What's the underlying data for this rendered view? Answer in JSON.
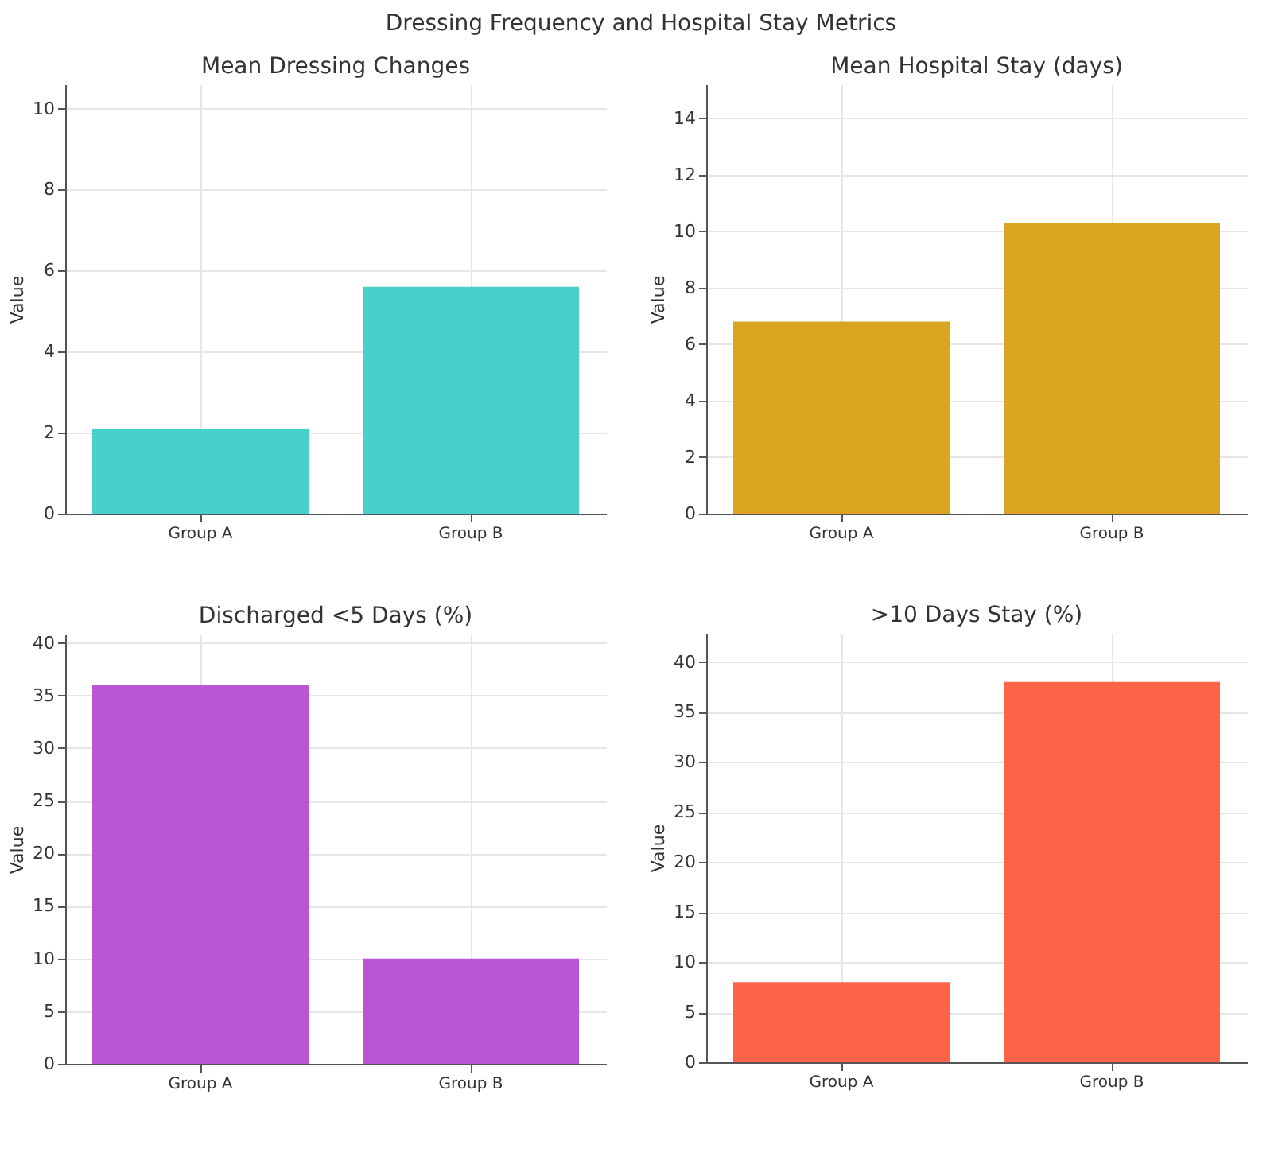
{
  "chart_data": [
    {
      "type": "bar",
      "title": "Mean Dressing Changes",
      "ylabel": "Value",
      "annotations": [
        "Dressing Frequency and Hospital Stay Metrics"
      ],
      "categories": [
        "Group A",
        "Group B"
      ],
      "values": [
        2.1,
        5.6
      ],
      "color": "#48d1cc",
      "ylim": [
        0,
        10.6
      ],
      "yticks": [
        0,
        2,
        4,
        6,
        8,
        10
      ],
      "grid": true
    },
    {
      "type": "bar",
      "title": "Mean Hospital Stay (days)",
      "ylabel": "Value",
      "categories": [
        "Group A",
        "Group B"
      ],
      "values": [
        6.8,
        10.3
      ],
      "color": "#daa520",
      "ylim": [
        0,
        15.2
      ],
      "yticks": [
        0,
        2,
        4,
        6,
        8,
        10,
        12,
        14
      ],
      "grid": true
    },
    {
      "type": "bar",
      "title": "Discharged <5 Days (%)",
      "ylabel": "Value",
      "categories": [
        "Group A",
        "Group B"
      ],
      "values": [
        36,
        10
      ],
      "color": "#ba55d3",
      "ylim": [
        0,
        40.8
      ],
      "yticks": [
        0,
        5,
        10,
        15,
        20,
        25,
        30,
        35,
        40
      ],
      "grid": true
    },
    {
      "type": "bar",
      "title": ">10 Days Stay (%)",
      "ylabel": "Value",
      "categories": [
        "Group A",
        "Group B"
      ],
      "values": [
        8,
        38
      ],
      "color": "#ff6347",
      "ylim": [
        0,
        42.9
      ],
      "yticks": [
        0,
        5,
        10,
        15,
        20,
        25,
        30,
        35,
        40
      ],
      "grid": true
    }
  ]
}
